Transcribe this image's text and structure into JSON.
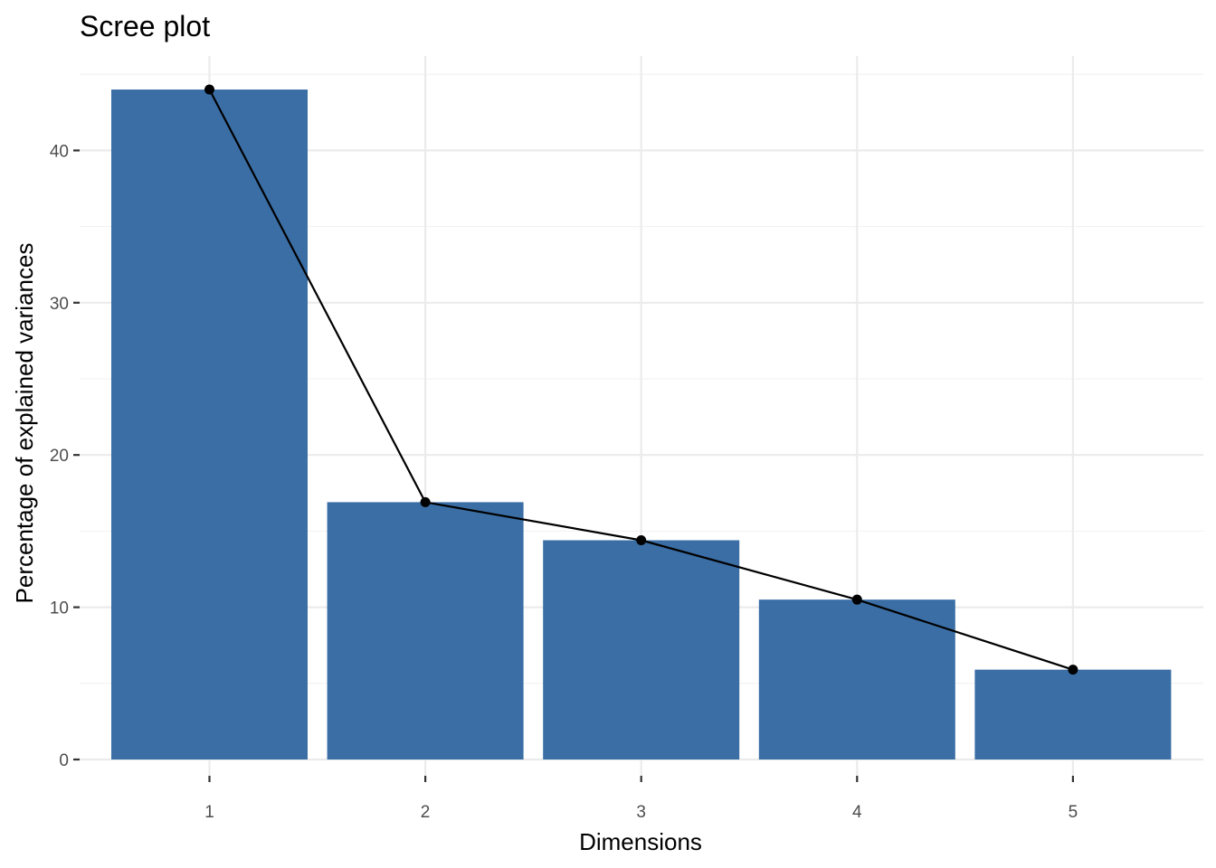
{
  "chart_data": {
    "type": "bar",
    "title": "Scree plot",
    "xlabel": "Dimensions",
    "ylabel": "Percentage of explained variances",
    "categories": [
      "1",
      "2",
      "3",
      "4",
      "5"
    ],
    "values": [
      44.0,
      16.9,
      14.4,
      10.5,
      5.9
    ],
    "ylim": [
      0,
      46
    ],
    "yticks": [
      0,
      10,
      20,
      30,
      40
    ],
    "overlay": "line-with-points",
    "grid": true,
    "legend": "none",
    "colors": {
      "bar": "#3a6ea5",
      "line": "#000000",
      "grid": "#ebebeb"
    }
  }
}
